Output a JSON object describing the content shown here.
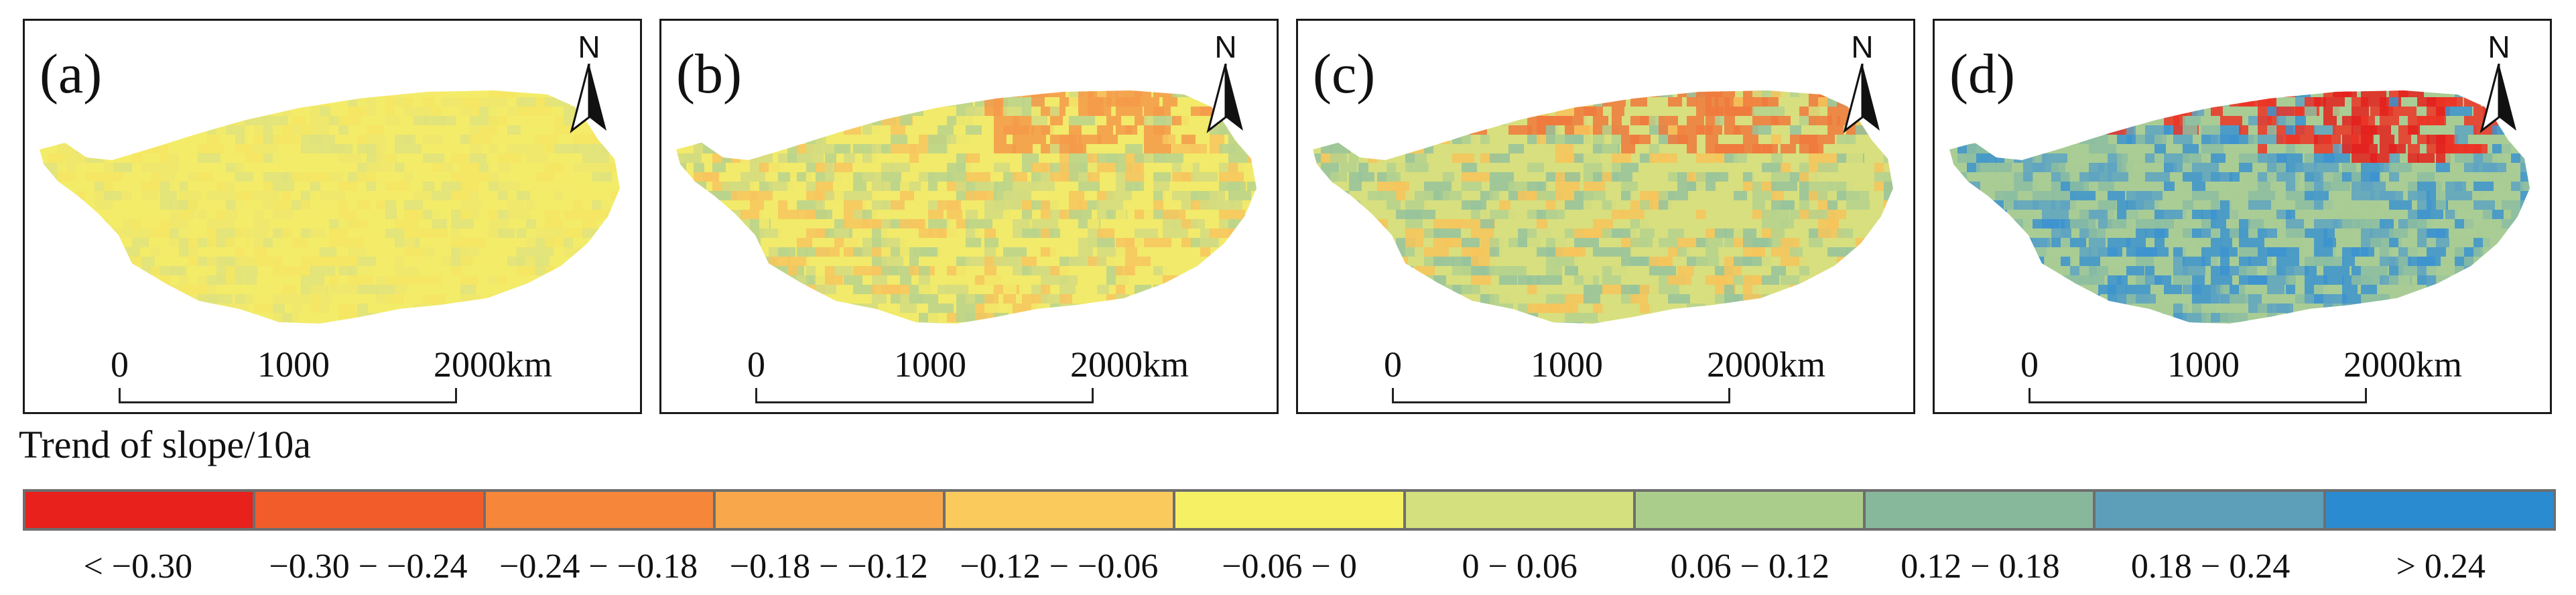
{
  "panels": [
    {
      "label": "(a)",
      "north": "N",
      "scale_labels": [
        "0",
        "1000",
        "2000km"
      ],
      "colors": [
        "#f3ec69",
        "#f5e664",
        "#dfe37c",
        "#eee86e",
        "#d0dc83",
        "#f7e465"
      ]
    },
    {
      "label": "(b)",
      "north": "N",
      "scale_labels": [
        "0",
        "1000",
        "2000km"
      ],
      "colors": [
        "#f2ea6a",
        "#d3dc80",
        "#b8d38c",
        "#f7c65e",
        "#f49a4a",
        "#a6ca93"
      ]
    },
    {
      "label": "(c)",
      "north": "N",
      "scale_labels": [
        "0",
        "1000",
        "2000km"
      ],
      "colors": [
        "#d8df7e",
        "#b5d28d",
        "#96c39c",
        "#f7c45b",
        "#f07a3d",
        "#ec4b2a"
      ]
    },
    {
      "label": "(d)",
      "north": "N",
      "scale_labels": [
        "0",
        "1000",
        "2000km"
      ],
      "colors": [
        "#a9cc95",
        "#8cbda1",
        "#5ea3c2",
        "#3c93cf",
        "#ec3426",
        "#e4201c"
      ]
    }
  ],
  "legend": {
    "title": "Trend of slope/10a",
    "items": [
      {
        "label": "< −0.30",
        "color": "#e8211c"
      },
      {
        "label": "−0.30 − −0.24",
        "color": "#f25c2b"
      },
      {
        "label": "−0.24 − −0.18",
        "color": "#f5863a"
      },
      {
        "label": "−0.18 − −0.12",
        "color": "#f8a84b"
      },
      {
        "label": "−0.12 − −0.06",
        "color": "#fbca5c"
      },
      {
        "label": "−0.06 − 0",
        "color": "#f6f164"
      },
      {
        "label": "0 − 0.06",
        "color": "#d3e07d"
      },
      {
        "label": "0.06 − 0.12",
        "color": "#abcd8b"
      },
      {
        "label": "0.12 − 0.18",
        "color": "#88b89c"
      },
      {
        "label": "0.18 − 0.24",
        "color": "#5d9fb9"
      },
      {
        "label": "> 0.24",
        "color": "#2b8bd0"
      }
    ]
  }
}
